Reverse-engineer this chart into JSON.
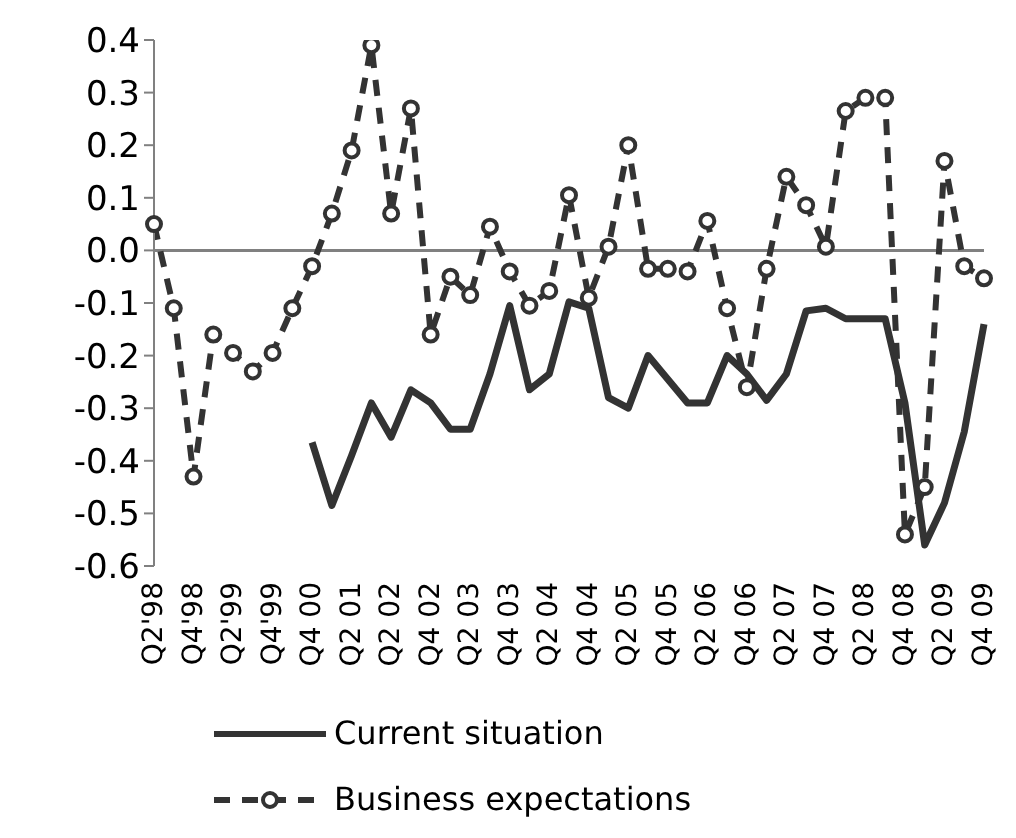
{
  "chart_data": {
    "type": "line",
    "categories": [
      "Q2'98",
      null,
      "Q4'98",
      null,
      "Q2'99",
      null,
      "Q4'99",
      null,
      "Q4 00",
      null,
      "Q2 01",
      null,
      "Q2 02",
      null,
      "Q4 02",
      null,
      "Q2 03",
      null,
      "Q4 03",
      null,
      "Q2 04",
      null,
      "Q4 04",
      null,
      "Q2 05",
      null,
      "Q4 05",
      null,
      "Q2 06",
      null,
      "Q4 06",
      null,
      "Q2 07",
      null,
      "Q4 07",
      null,
      "Q2 08",
      null,
      "Q4 08",
      null,
      "Q2 09",
      null,
      "Q4 09"
    ],
    "series": [
      {
        "name": "Current situation",
        "color": "#333333",
        "line_style": "solid",
        "marker": "none",
        "values": [
          null,
          null,
          null,
          null,
          null,
          null,
          null,
          null,
          -0.365,
          -0.485,
          -0.39,
          -0.29,
          -0.355,
          -0.265,
          -0.29,
          -0.34,
          -0.34,
          -0.235,
          -0.105,
          -0.265,
          -0.235,
          -0.098,
          -0.11,
          -0.28,
          -0.3,
          -0.2,
          -0.245,
          -0.29,
          -0.29,
          -0.2,
          -0.235,
          -0.285,
          -0.235,
          -0.115,
          -0.11,
          -0.13,
          -0.13,
          -0.13,
          -0.29,
          -0.56,
          -0.48,
          -0.345,
          -0.14
        ]
      },
      {
        "name": "Business expectations",
        "color": "#333333",
        "line_style": "dashed",
        "marker": "circle",
        "values": [
          0.05,
          -0.11,
          -0.43,
          -0.16,
          -0.195,
          -0.23,
          -0.195,
          -0.11,
          -0.03,
          0.07,
          0.19,
          0.39,
          0.07,
          0.27,
          -0.16,
          -0.05,
          -0.085,
          0.045,
          -0.04,
          -0.105,
          -0.077,
          0.105,
          -0.09,
          0.007,
          0.2,
          -0.035,
          -0.035,
          -0.04,
          0.056,
          -0.11,
          -0.26,
          -0.035,
          0.14,
          0.086,
          0.007,
          0.265,
          0.29,
          0.29,
          -0.54,
          -0.45,
          0.17,
          -0.03,
          -0.053
        ]
      }
    ],
    "ylim": [
      -0.6,
      0.4
    ],
    "yticks": [
      -0.6,
      -0.5,
      -0.4,
      -0.3,
      -0.2,
      -0.1,
      {
        "value": 0,
        "label": "0.0"
      },
      0.1,
      0.2,
      0.3,
      0.4
    ],
    "legend": "bottom"
  }
}
